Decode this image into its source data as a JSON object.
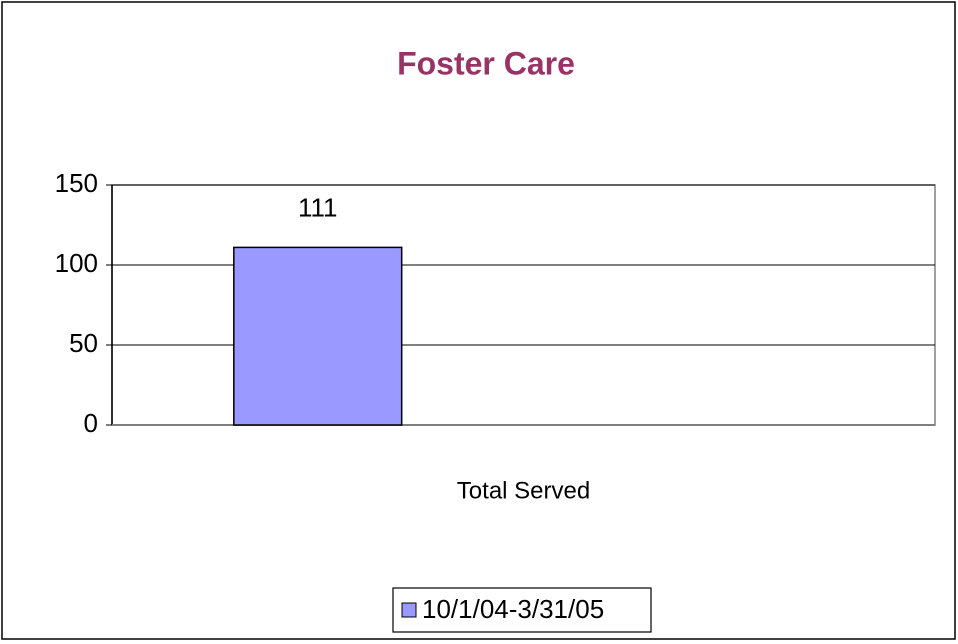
{
  "chart_data": {
    "type": "bar",
    "title": "Foster Care",
    "categories": [
      "Total Served"
    ],
    "series": [
      {
        "name": "10/1/04-3/31/05",
        "color": "#9999ff",
        "values": [
          111
        ]
      }
    ],
    "ylim": [
      0,
      150
    ],
    "yticks": [
      0,
      50,
      100,
      150
    ],
    "grid": true,
    "legend": "bottom"
  }
}
